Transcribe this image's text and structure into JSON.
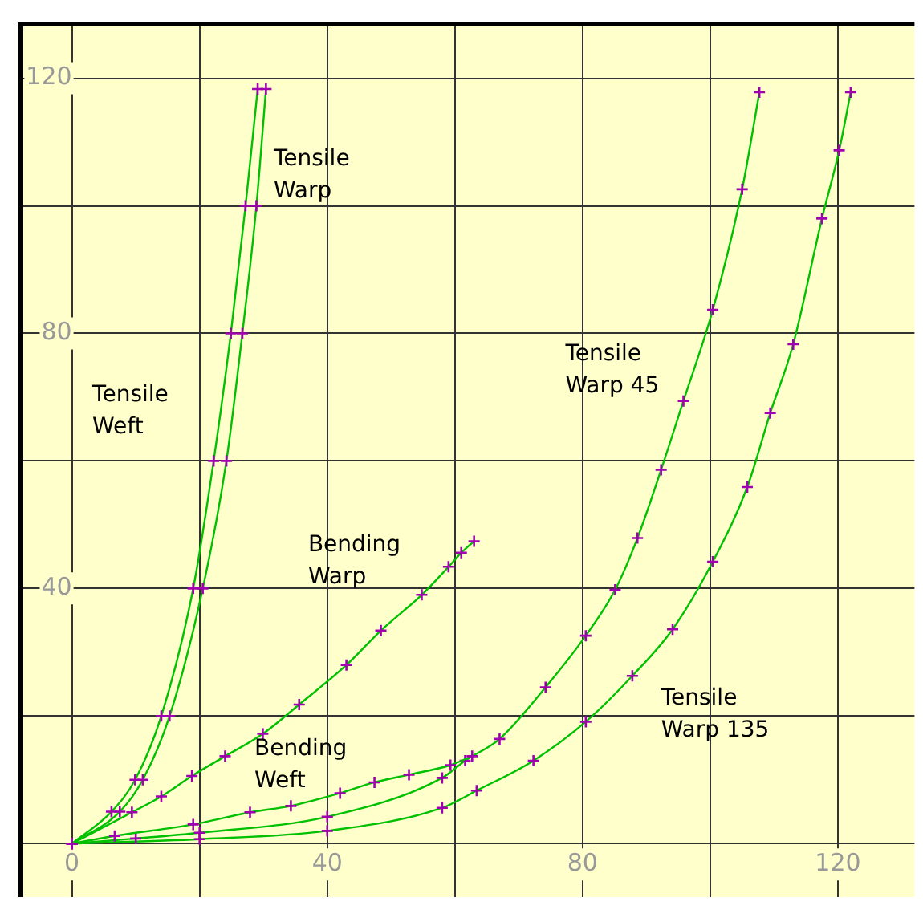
{
  "chart_data": {
    "type": "line",
    "marker": "cross",
    "grid": true,
    "legend": false,
    "xlim": [
      -8,
      132
    ],
    "ylim": [
      -8.4,
      128.5
    ],
    "xticks": [
      0,
      {
        "value": 20,
        "label": null
      },
      40,
      {
        "value": 60,
        "label": null
      },
      80,
      {
        "value": 100,
        "label": null
      },
      120
    ],
    "yticks": [
      {
        "value": 0,
        "label": null
      },
      {
        "value": 20,
        "label": null
      },
      40,
      {
        "value": 60,
        "label": null
      },
      80,
      {
        "value": 100,
        "label": null
      },
      120
    ],
    "series": [
      {
        "name": "Tensile Weft",
        "color": "#a000b0",
        "x": [
          0,
          6.2,
          9.9,
          14,
          19,
          22.2,
          24.9,
          27.2,
          29.1
        ],
        "values": [
          0,
          5,
          10,
          20,
          40,
          60,
          80,
          100,
          118.3
        ]
      },
      {
        "name": "Tensile Warp",
        "color": "#a000b0",
        "x": [
          0,
          7.5,
          11.1,
          15.3,
          20.5,
          24.2,
          26.7,
          28.9,
          30.4
        ],
        "values": [
          0,
          5,
          10,
          20,
          40,
          60,
          80,
          100,
          118.3
        ]
      },
      {
        "name": "Bending Warp",
        "color": "#a000b0",
        "x": [
          0,
          9.4,
          14,
          18.8,
          24,
          29.9,
          35.6,
          43,
          48.4,
          54.8,
          59,
          61,
          63
        ],
        "values": [
          0,
          4.9,
          7.4,
          10.6,
          13.7,
          17.2,
          21.8,
          28,
          33.4,
          39,
          43.4,
          45.6,
          47.4
        ]
      },
      {
        "name": "Bending Weft",
        "color": "#a000b0",
        "x": [
          0,
          6.7,
          19,
          27.9,
          34.3,
          42,
          47.4,
          52.8,
          59.3,
          62.7
        ],
        "values": [
          0,
          1.2,
          3,
          4.9,
          5.9,
          7.9,
          9.6,
          10.8,
          12.3,
          13.7
        ]
      },
      {
        "name": "Tensile Warp 45",
        "color": "#a000b0",
        "x": [
          0,
          10,
          20,
          40,
          58,
          61.6,
          67,
          74.2,
          80.5,
          85.1,
          88.6,
          92.3,
          95.8,
          100.4,
          105,
          107.7
        ],
        "values": [
          0,
          0.8,
          1.7,
          4.2,
          10.3,
          13,
          16.4,
          24.5,
          32.6,
          39.8,
          47.9,
          58.6,
          69.4,
          83.7,
          102.6,
          117.8
        ]
      },
      {
        "name": "Tensile Warp 135",
        "color": "#a000b0",
        "x": [
          0,
          20,
          40,
          58,
          63.4,
          72.3,
          80.5,
          87.8,
          94.1,
          100.4,
          105.8,
          109.4,
          113,
          117.5,
          120.2,
          122
        ],
        "values": [
          0,
          0.7,
          2,
          5.6,
          8.3,
          13,
          19.1,
          26.3,
          33.6,
          44.2,
          55.9,
          67.5,
          78.3,
          98,
          108.7,
          117.8
        ]
      }
    ]
  }
}
